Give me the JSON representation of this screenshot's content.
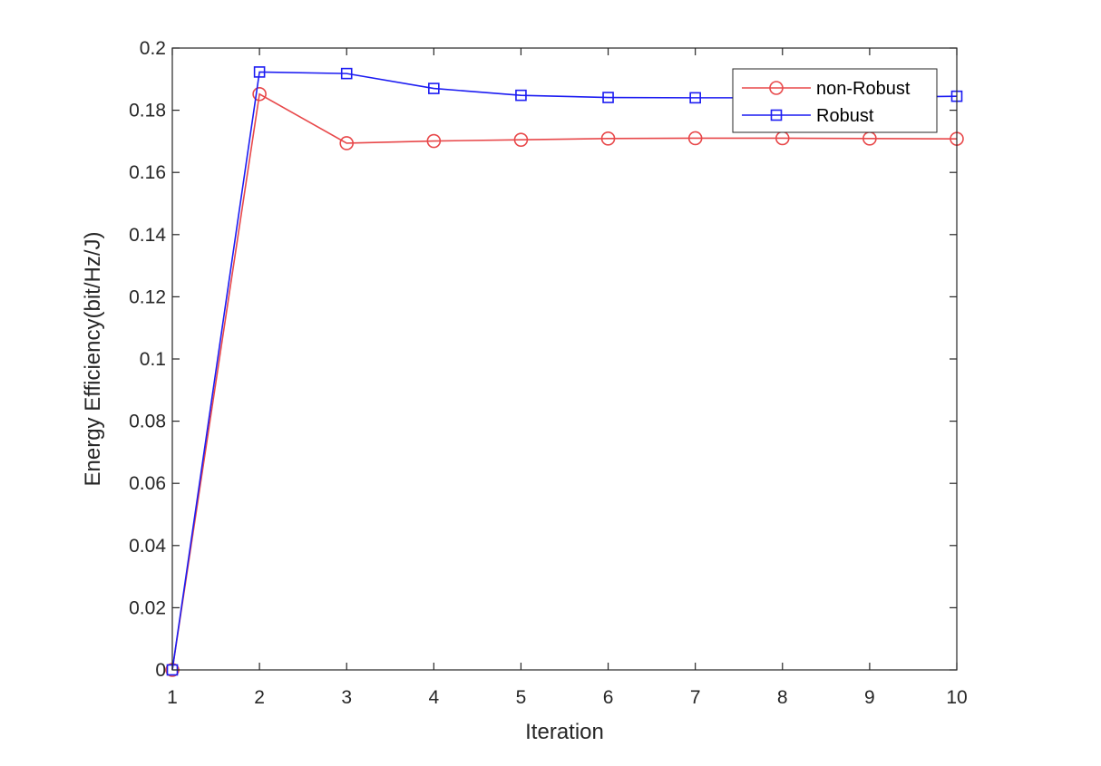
{
  "chart_data": {
    "type": "line",
    "xlabel": "Iteration",
    "ylabel": "Energy Efficiency(bit/Hz/J)",
    "xlim": [
      1,
      10
    ],
    "ylim": [
      0,
      0.2
    ],
    "xticks": [
      1,
      2,
      3,
      4,
      5,
      6,
      7,
      8,
      9,
      10
    ],
    "xtick_labels": [
      "1",
      "2",
      "3",
      "4",
      "5",
      "6",
      "7",
      "8",
      "9",
      "10"
    ],
    "yticks": [
      0,
      0.02,
      0.04,
      0.06,
      0.08,
      0.1,
      0.12,
      0.14,
      0.16,
      0.18,
      0.2
    ],
    "ytick_labels": [
      "0",
      "0.02",
      "0.04",
      "0.06",
      "0.08",
      "0.1",
      "0.12",
      "0.14",
      "0.16",
      "0.18",
      "0.2"
    ],
    "grid": false,
    "legend_position": "top-right",
    "x": [
      1,
      2,
      3,
      4,
      5,
      6,
      7,
      8,
      9,
      10
    ],
    "series": [
      {
        "name": "non-Robust",
        "color": "#e8484a",
        "marker": "circle",
        "values": [
          0,
          0.1852,
          0.1694,
          0.1701,
          0.1705,
          0.1709,
          0.171,
          0.171,
          0.1709,
          0.1708
        ]
      },
      {
        "name": "Robust",
        "color": "#1c1cf2",
        "marker": "square",
        "values": [
          0,
          0.1923,
          0.1918,
          0.187,
          0.1848,
          0.1841,
          0.184,
          0.184,
          0.1841,
          0.1845
        ]
      }
    ]
  }
}
